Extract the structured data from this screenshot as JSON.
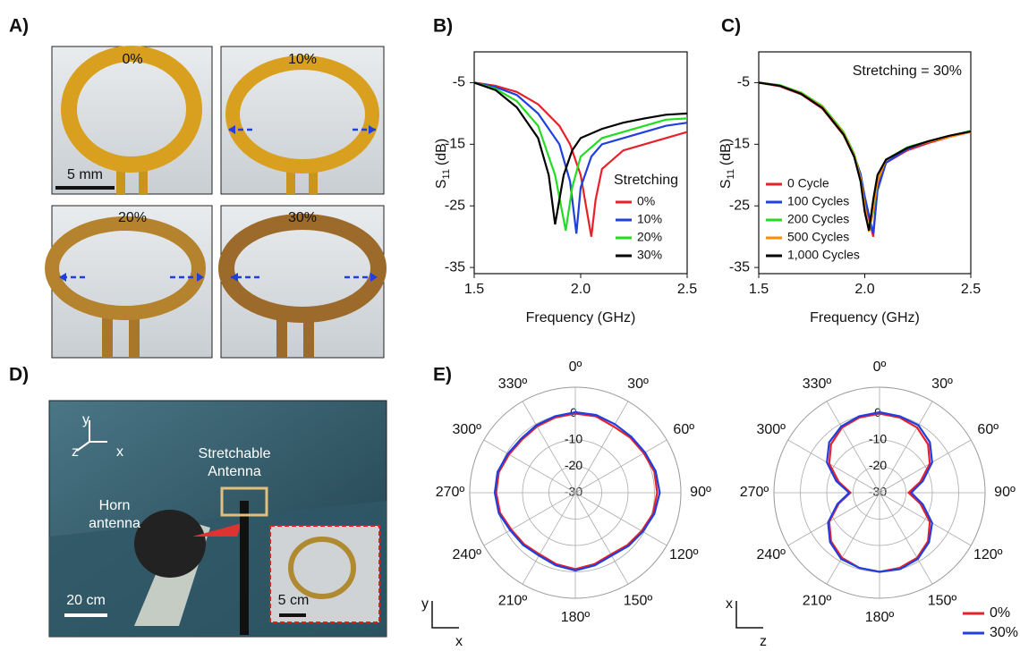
{
  "panels": {
    "A": {
      "label": "A)",
      "photos": [
        "0%",
        "10%",
        "20%",
        "30%"
      ],
      "scale_bar": "5 mm"
    },
    "B": {
      "label": "B)"
    },
    "C": {
      "label": "C)"
    },
    "D": {
      "label": "D)",
      "axes": [
        "y",
        "z",
        "x"
      ],
      "antenna_label": [
        "Stretchable",
        "Antenna"
      ],
      "horn_label": [
        "Horn",
        "antenna"
      ],
      "scale_bar": "20 cm",
      "inset_scale_bar": "5 cm"
    },
    "E": {
      "label": "E)"
    }
  },
  "chart_data": [
    {
      "type": "line",
      "xlabel": "Frequency (GHz)",
      "ylabel": "S",
      "ylabel_sub": "11",
      "ylabel_unit": "(dB)",
      "xlim": [
        1.5,
        2.5
      ],
      "xticks": [
        1.5,
        {
          "value": 2,
          "label": "2.0"
        },
        2.5
      ],
      "ylim": [
        -36,
        0
      ],
      "yticks": [
        -5,
        -15,
        -25,
        -35
      ],
      "legend_title": "Stretching",
      "legend": "lower right",
      "series": [
        {
          "name": "0%",
          "color": "#e8202a",
          "x": [
            1.5,
            1.6,
            1.7,
            1.8,
            1.9,
            1.95,
            2.0,
            2.03,
            2.05,
            2.07,
            2.1,
            2.2,
            2.3,
            2.4,
            2.5
          ],
          "values": [
            -5,
            -5.5,
            -6.5,
            -8.5,
            -12,
            -15,
            -20,
            -26,
            -30,
            -24,
            -19,
            -16,
            -15,
            -14,
            -13
          ]
        },
        {
          "name": "10%",
          "color": "#1f3fe0",
          "x": [
            1.5,
            1.6,
            1.7,
            1.8,
            1.9,
            1.95,
            1.98,
            2.0,
            2.05,
            2.1,
            2.2,
            2.3,
            2.4,
            2.5
          ],
          "values": [
            -5,
            -5.7,
            -7,
            -10,
            -15,
            -21,
            -29.5,
            -22,
            -17,
            -15,
            -14,
            -13,
            -12,
            -11.5
          ]
        },
        {
          "name": "20%",
          "color": "#22dd22",
          "x": [
            1.5,
            1.6,
            1.7,
            1.8,
            1.88,
            1.93,
            1.96,
            2.0,
            2.1,
            2.2,
            2.3,
            2.4,
            2.5
          ],
          "values": [
            -5,
            -6,
            -8,
            -12,
            -20,
            -29,
            -22,
            -17,
            -14,
            -13,
            -12,
            -11,
            -10.8
          ]
        },
        {
          "name": "30%",
          "color": "#000000",
          "x": [
            1.5,
            1.6,
            1.7,
            1.8,
            1.85,
            1.88,
            1.92,
            1.96,
            2.0,
            2.1,
            2.2,
            2.3,
            2.4,
            2.5
          ],
          "values": [
            -5,
            -6.2,
            -9,
            -14,
            -20,
            -28,
            -20,
            -16,
            -14,
            -12.5,
            -11.5,
            -10.8,
            -10.2,
            -10
          ]
        }
      ]
    },
    {
      "type": "line",
      "xlabel": "Frequency (GHz)",
      "ylabel": "S",
      "ylabel_sub": "11",
      "ylabel_unit": "(dB)",
      "annotation": "Stretching = 30%",
      "xlim": [
        1.5,
        2.5
      ],
      "xticks": [
        1.5,
        {
          "value": 2,
          "label": "2.0"
        },
        2.5
      ],
      "ylim": [
        -36,
        0
      ],
      "yticks": [
        -5,
        -15,
        -25,
        -35
      ],
      "legend": "lower left",
      "x": [
        1.5,
        1.6,
        1.7,
        1.8,
        1.9,
        1.95,
        1.98,
        2.0,
        2.02,
        2.04,
        2.06,
        2.1,
        2.2,
        2.3,
        2.4,
        2.5
      ],
      "series": [
        {
          "name": "0 Cycle",
          "color": "#e8202a",
          "values": [
            -5,
            -5.6,
            -6.9,
            -9.2,
            -13.5,
            -17,
            -20,
            -24,
            -27,
            -30,
            -22,
            -18,
            -16,
            -14.8,
            -13.8,
            -13
          ]
        },
        {
          "name": "100 Cycles",
          "color": "#1f3fe0",
          "values": [
            -5,
            -5.5,
            -6.8,
            -9,
            -13.3,
            -16.8,
            -19.8,
            -23.5,
            -26.5,
            -29.5,
            -22.5,
            -18,
            -15.8,
            -14.6,
            -13.7,
            -13
          ]
        },
        {
          "name": "200 Cycles",
          "color": "#22dd22",
          "values": [
            -5,
            -5.4,
            -6.6,
            -8.8,
            -13,
            -16.5,
            -20.5,
            -25,
            -29,
            -26,
            -21,
            -17.5,
            -15.5,
            -14.5,
            -13.7,
            -12.8
          ]
        },
        {
          "name": "500 Cycles",
          "color": "#ff8c00",
          "values": [
            -5,
            -5.5,
            -6.7,
            -9,
            -13.2,
            -16.8,
            -20.5,
            -25,
            -29.2,
            -25.5,
            -21,
            -17.5,
            -15.6,
            -14.6,
            -13.8,
            -13
          ]
        },
        {
          "name": "1,000 Cycles",
          "color": "#000000",
          "values": [
            -5,
            -5.5,
            -6.8,
            -9.1,
            -13.4,
            -17,
            -21,
            -26,
            -29,
            -24,
            -20,
            -17.5,
            -15.6,
            -14.5,
            -13.6,
            -12.9
          ]
        }
      ]
    },
    {
      "type": "polar",
      "rlim": [
        -30,
        10
      ],
      "rticks": [
        0,
        -10,
        -20,
        -30
      ],
      "axis_labels": [
        "y",
        "x"
      ],
      "thetaticks": [
        {
          "value": 0,
          "label": "0º"
        },
        {
          "value": 30,
          "label": "30º"
        },
        {
          "value": 60,
          "label": "60º"
        },
        {
          "value": 90,
          "label": "90º"
        },
        {
          "value": 120,
          "label": "120º"
        },
        {
          "value": 150,
          "label": "150º"
        },
        {
          "value": 180,
          "label": "180º"
        },
        {
          "value": 210,
          "label": "210º"
        },
        {
          "value": 240,
          "label": "240º"
        },
        {
          "value": 270,
          "label": "270º"
        },
        {
          "value": 300,
          "label": "300º"
        },
        {
          "value": 330,
          "label": "330º"
        }
      ],
      "theta": [
        0,
        15,
        30,
        45,
        60,
        75,
        90,
        105,
        120,
        135,
        150,
        165,
        180,
        195,
        210,
        225,
        240,
        255,
        270,
        285,
        300,
        315,
        330,
        345
      ],
      "series": [
        {
          "color": "#e8202a",
          "values": [
            0,
            0,
            -1,
            -0.5,
            0,
            1,
            1,
            0.5,
            -1,
            -2,
            -3,
            -2,
            -1,
            -2,
            -3,
            -2.5,
            -2,
            -0.5,
            0,
            0,
            -1,
            -1.5,
            -1,
            -0.5
          ]
        },
        {
          "color": "#1f3fe0",
          "values": [
            0.5,
            0.5,
            0,
            0,
            0.5,
            1.5,
            2,
            1,
            -0.5,
            -1.5,
            -2.5,
            -1.5,
            -0.5,
            -1.5,
            -2.5,
            -2,
            -1.5,
            0,
            0.5,
            0.5,
            -0.5,
            -1,
            -0.5,
            0
          ]
        }
      ]
    },
    {
      "type": "polar",
      "rlim": [
        -30,
        10
      ],
      "rticks": [
        0,
        -10,
        -20,
        -30
      ],
      "axis_labels": [
        "x",
        "z"
      ],
      "legend": "lower right",
      "thetaticks": [
        {
          "value": 0,
          "label": "0º"
        },
        {
          "value": 30,
          "label": "30º"
        },
        {
          "value": 60,
          "label": "60º"
        },
        {
          "value": 90,
          "label": "90º"
        },
        {
          "value": 120,
          "label": "120º"
        },
        {
          "value": 150,
          "label": "150º"
        },
        {
          "value": 180,
          "label": "180º"
        },
        {
          "value": 210,
          "label": "210º"
        },
        {
          "value": 240,
          "label": "240º"
        },
        {
          "value": 270,
          "label": "270º"
        },
        {
          "value": 300,
          "label": "300º"
        },
        {
          "value": 330,
          "label": "330º"
        }
      ],
      "theta": [
        0,
        15,
        30,
        45,
        60,
        75,
        90,
        105,
        120,
        135,
        150,
        165,
        180,
        195,
        210,
        225,
        240,
        255,
        270,
        285,
        300,
        315,
        330,
        345
      ],
      "series": [
        {
          "name": "0%",
          "color": "#e8202a",
          "values": [
            0,
            -0.5,
            -1.5,
            -4,
            -8,
            -14,
            -19,
            -14,
            -8,
            -4,
            -1.5,
            -0.5,
            0,
            -0.5,
            -1.5,
            -4,
            -8,
            -14,
            -19,
            -14,
            -8,
            -4,
            -1.5,
            -0.5
          ]
        },
        {
          "name": "30%",
          "color": "#1f3fe0",
          "values": [
            0.5,
            0,
            -0.5,
            -3,
            -7,
            -13,
            -18,
            -13,
            -7,
            -3.5,
            -1,
            0,
            0,
            -0.5,
            -1,
            -3.5,
            -7.5,
            -13.5,
            -18.5,
            -13,
            -7,
            -3,
            -1,
            0
          ]
        }
      ]
    }
  ]
}
